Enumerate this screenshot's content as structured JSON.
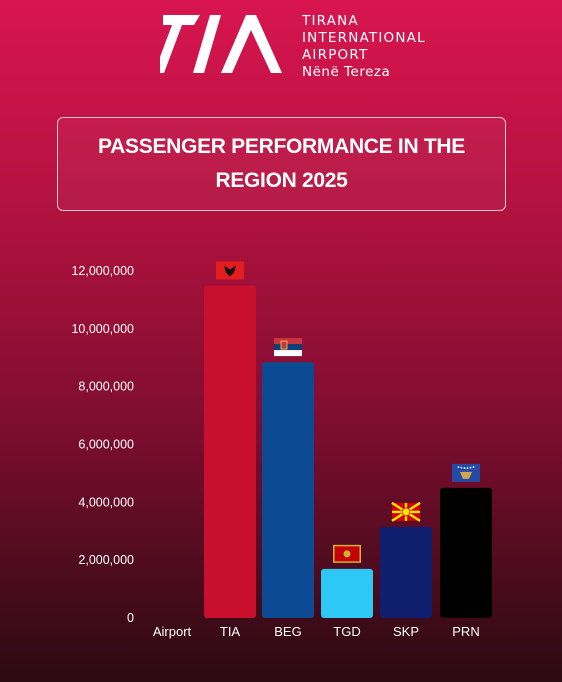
{
  "brand": {
    "line1": "TIRANA",
    "line2": "INTERNATIONAL",
    "line3": "AIRPORT",
    "line4": "Nënë Tereza"
  },
  "chart_data": {
    "type": "bar",
    "title": "PASSENGER PERFORMANCE IN THE REGION 2025",
    "xlabel": "Airport",
    "ylabel": "",
    "categories": [
      "TIA",
      "BEG",
      "TGD",
      "SKP",
      "PRN"
    ],
    "values": [
      11500000,
      8850000,
      1700000,
      3150000,
      4500000
    ],
    "ylim": [
      0,
      12000000
    ],
    "yticks": [
      "0",
      "2,000,000",
      "4,000,000",
      "6,000,000",
      "8,000,000",
      "10,000,000",
      "12,000,000"
    ],
    "bar_colors": [
      "#c8102e",
      "#0c4a94",
      "#2ec8f5",
      "#0f1e6e",
      "#000000"
    ],
    "flags": [
      "albania-flag",
      "serbia-flag",
      "montenegro-flag",
      "north-macedonia-flag",
      "kosovo-flag"
    ],
    "grid": false,
    "legend": "none"
  }
}
